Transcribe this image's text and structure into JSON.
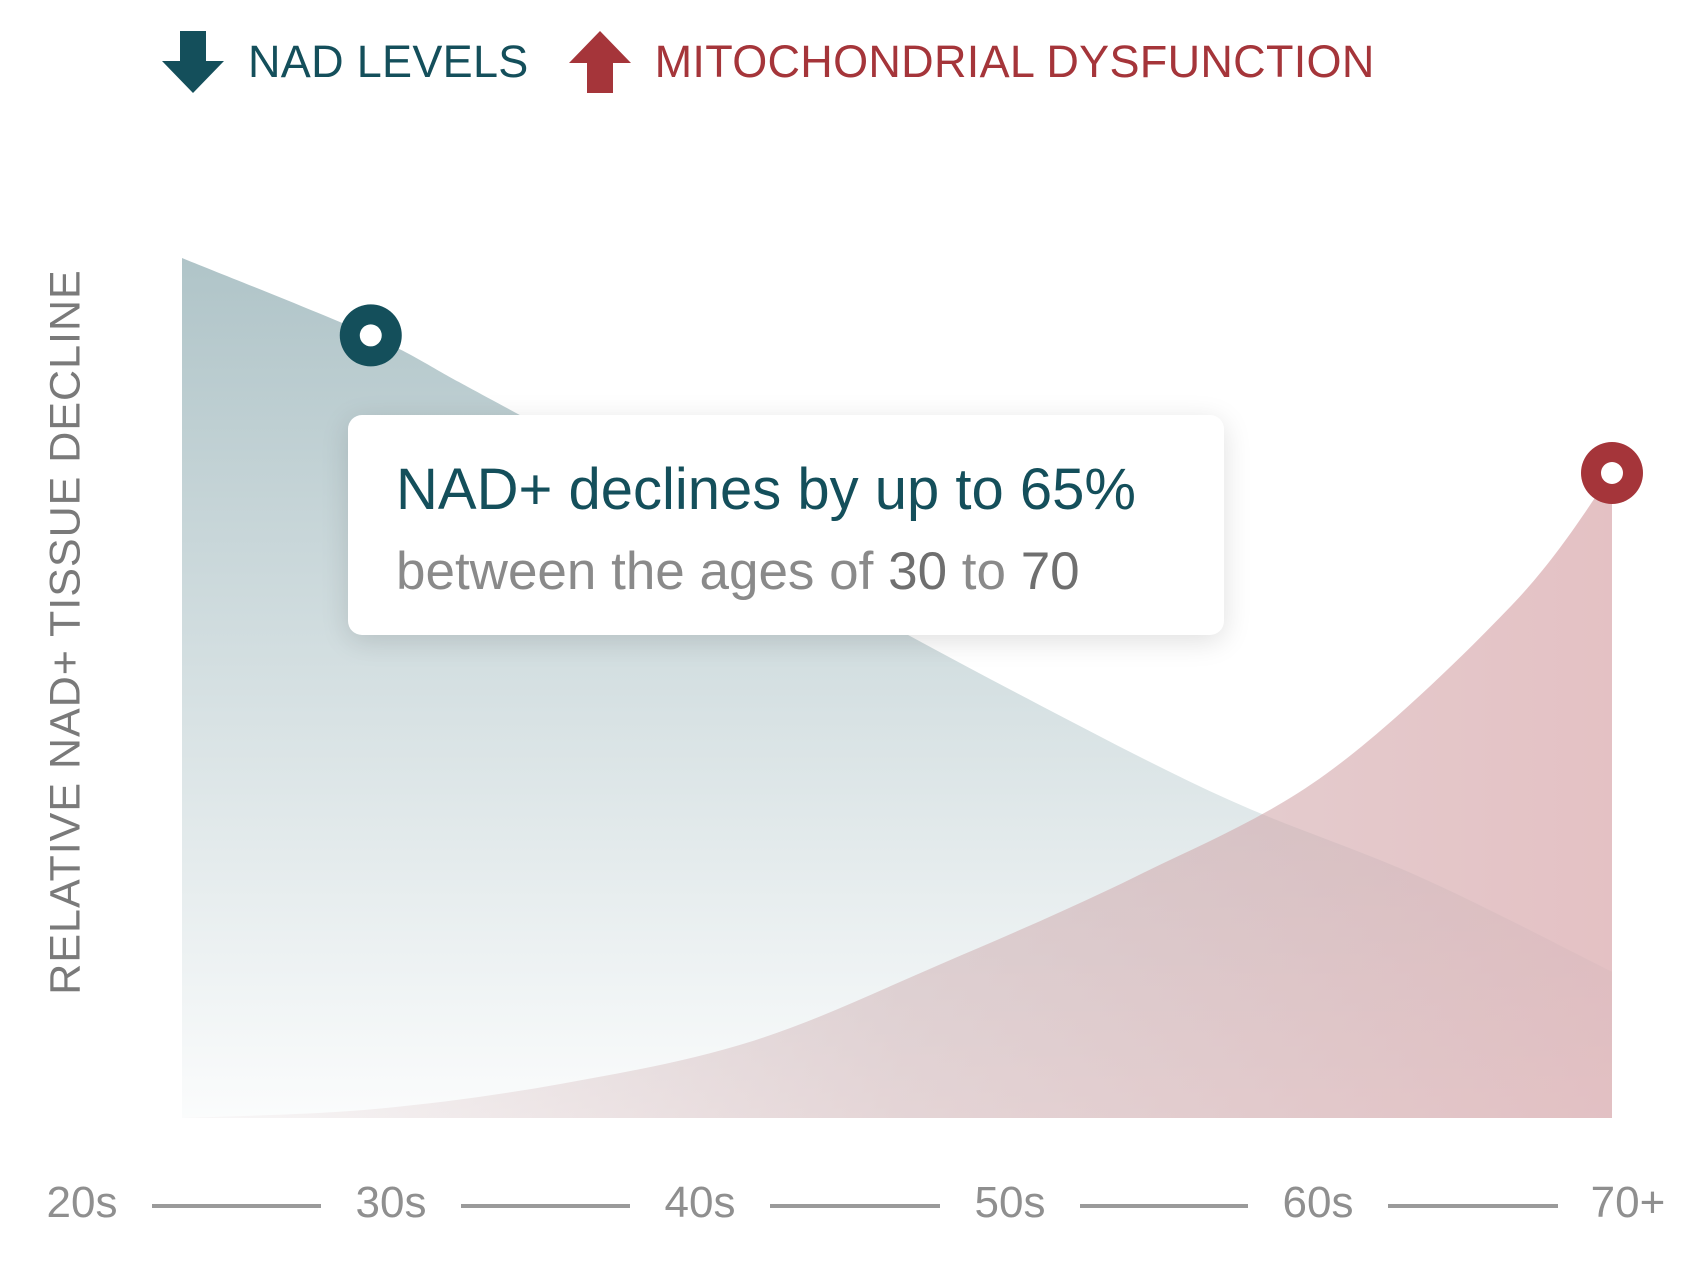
{
  "legend": [
    {
      "label": "NAD LEVELS",
      "color": "#144f5b",
      "icon": "arrow-down-icon"
    },
    {
      "label": "MITOCHONDRIAL DYSFUNCTION",
      "color": "#a5353a",
      "icon": "arrow-up-icon"
    }
  ],
  "callout": {
    "line1_prefix": "NAD+ declines by up to ",
    "line1_highlight": "65%",
    "line2_prefix": "between the ages of ",
    "line2_from": "30",
    "line2_mid": " to ",
    "line2_to": "70"
  },
  "chart_data": {
    "type": "area",
    "ylabel": "RELATIVE NAD+ TISSUE DECLINE",
    "xlabel": "",
    "categories": [
      "20s",
      "30s",
      "40s",
      "50s",
      "60s",
      "70+"
    ],
    "x": [
      0,
      1,
      2,
      3,
      4,
      5
    ],
    "ylim": [
      0,
      100
    ],
    "grid": false,
    "legend_position": "top-left",
    "series": [
      {
        "name": "NAD LEVELS",
        "color": "#144f5b",
        "x": [
          0,
          0.66,
          1,
          1.66,
          2.33,
          3,
          3.66,
          4.33,
          5
        ],
        "values": [
          100,
          91,
          85,
          73,
          60,
          48,
          37,
          28,
          17
        ],
        "marker_at_x": 0.66
      },
      {
        "name": "MITOCHONDRIAL DYSFUNCTION",
        "color": "#a5353a",
        "x": [
          0,
          0.66,
          1.33,
          2,
          2.66,
          3.33,
          4,
          4.66,
          5
        ],
        "values": [
          0,
          1,
          4,
          9,
          18,
          28,
          40,
          60,
          75
        ],
        "marker_at_x": 5
      }
    ]
  }
}
